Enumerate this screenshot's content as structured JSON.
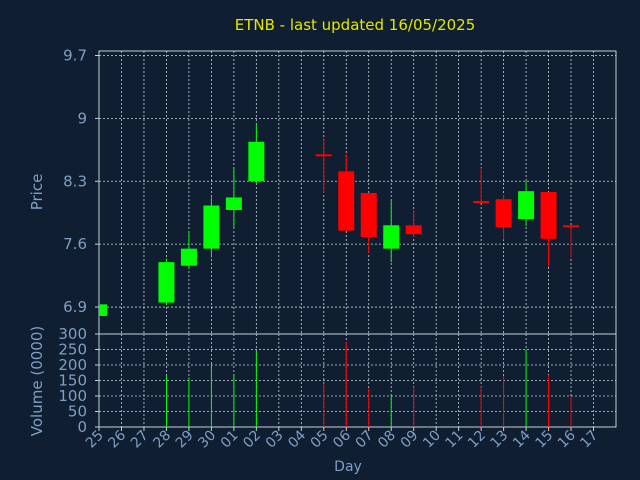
{
  "chart_data": {
    "type": "candlestick",
    "title": "ETNB - last updated 16/05/2025",
    "xlabel": "Day",
    "price_panel": {
      "ylabel": "Price",
      "ylim": [
        6.6,
        9.75
      ],
      "yticks": [
        "6.9",
        "7.6",
        "8.3",
        "9",
        "9.7"
      ],
      "ytick_values": [
        6.9,
        7.6,
        8.3,
        9.0,
        9.7
      ]
    },
    "volume_panel": {
      "ylabel": "Volume (0000)",
      "ylim": [
        0,
        300
      ],
      "yticks": [
        "0",
        "50",
        "100",
        "150",
        "200",
        "250",
        "300"
      ],
      "ytick_values": [
        0,
        50,
        100,
        150,
        200,
        250,
        300
      ]
    },
    "x_ticks": [
      "25",
      "26",
      "27",
      "28",
      "29",
      "30",
      "01",
      "02",
      "03",
      "04",
      "05",
      "06",
      "07",
      "08",
      "09",
      "10",
      "11",
      "12",
      "13",
      "14",
      "15",
      "16",
      "17"
    ],
    "candles": [
      {
        "day": "25",
        "open": 6.8,
        "high": 6.93,
        "low": 6.78,
        "close": 6.93,
        "volume": null
      },
      {
        "day": "28",
        "open": 6.95,
        "high": 7.44,
        "low": 6.92,
        "close": 7.4,
        "volume": 165
      },
      {
        "day": "29",
        "open": 7.36,
        "high": 7.73,
        "low": 7.33,
        "close": 7.55,
        "volume": 160
      },
      {
        "day": "30",
        "open": 7.55,
        "high": 8.12,
        "low": 7.45,
        "close": 8.03,
        "volume": 205
      },
      {
        "day": "01",
        "open": 7.98,
        "high": 8.44,
        "low": 7.79,
        "close": 8.12,
        "volume": 170
      },
      {
        "day": "02",
        "open": 8.3,
        "high": 8.93,
        "low": 8.27,
        "close": 8.74,
        "volume": 245
      },
      {
        "day": "05",
        "open": 8.6,
        "high": 8.78,
        "low": 8.17,
        "close": 8.58,
        "volume": 140
      },
      {
        "day": "06",
        "open": 8.41,
        "high": 8.6,
        "low": 7.75,
        "close": 7.75,
        "volume": 275
      },
      {
        "day": "07",
        "open": 8.17,
        "high": 8.17,
        "low": 7.5,
        "close": 7.68,
        "volume": 125
      },
      {
        "day": "08",
        "open": 7.55,
        "high": 8.08,
        "low": 7.4,
        "close": 7.81,
        "volume": 100
      },
      {
        "day": "09",
        "open": 7.81,
        "high": 7.98,
        "low": 7.68,
        "close": 7.71,
        "volume": 130
      },
      {
        "day": "12",
        "open": 8.08,
        "high": 8.45,
        "low": 8.06,
        "close": 8.06,
        "volume": 130
      },
      {
        "day": "13",
        "open": 8.1,
        "high": 8.15,
        "low": 7.65,
        "close": 7.79,
        "volume": 165
      },
      {
        "day": "14",
        "open": 7.88,
        "high": 8.3,
        "low": 7.8,
        "close": 8.19,
        "volume": 250
      },
      {
        "day": "15",
        "open": 8.18,
        "high": 8.18,
        "low": 7.35,
        "close": 7.66,
        "volume": 168
      },
      {
        "day": "16",
        "open": 7.81,
        "high": 7.81,
        "low": 7.45,
        "close": 7.79,
        "volume": 100
      }
    ],
    "grid": true,
    "colors": {
      "background": "#0f1e30",
      "title": "#e6e600",
      "axis_text": "#7f9fc6",
      "frame": "#c8d0dc",
      "grid": "#c8d0dc",
      "up": "#00ff00",
      "down": "#ff0000"
    }
  }
}
